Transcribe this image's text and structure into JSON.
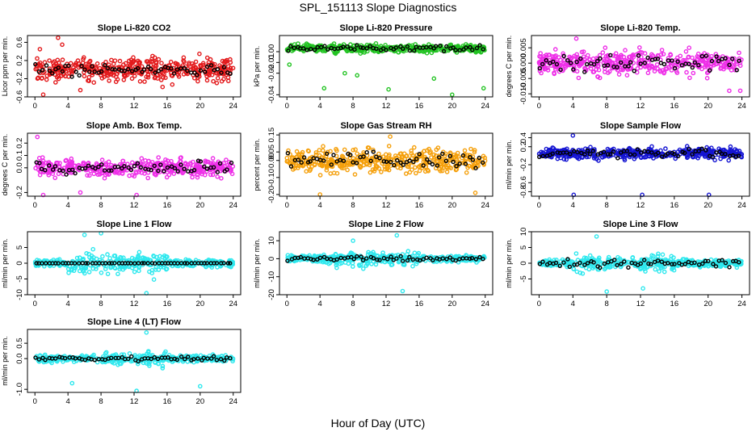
{
  "figure": {
    "title": "SPL_151113  Slope Diagnostics",
    "xlabel": "Hour of Day (UTC)"
  },
  "chart_data": [
    {
      "type": "scatter",
      "title": "Slope Li-820 CO2",
      "ylabel": "Licor ppm per min.",
      "xlim": [
        0,
        24
      ],
      "ylim": [
        -0.6,
        0.75
      ],
      "xticks": [
        "0",
        "4",
        "8",
        "12",
        "16",
        "20",
        "24"
      ],
      "yticks": [
        {
          "v": -0.6,
          "label": "-0.6"
        },
        {
          "v": -0.2,
          "label": "-0.2"
        },
        {
          "v": 0.2,
          "label": "0.2"
        },
        {
          "v": 0.6,
          "label": "0.6"
        }
      ],
      "color": "#e31a1c",
      "points_spread": 0.3,
      "black_spread": 0.15,
      "outliers": [
        [
          2.8,
          0.7
        ],
        [
          3.3,
          0.55
        ],
        [
          1.0,
          -0.55
        ],
        [
          5.5,
          -0.45
        ],
        [
          0.6,
          0.45
        ]
      ]
    },
    {
      "type": "scatter",
      "title": "Slope Li-820 Pressure",
      "ylabel": "kPa per min.",
      "xlim": [
        0,
        24
      ],
      "ylim": [
        -0.042,
        0.015
      ],
      "xticks": [
        "0",
        "4",
        "8",
        "12",
        "16",
        "20",
        "24"
      ],
      "yticks": [
        {
          "v": -0.04,
          "label": "-0.04"
        },
        {
          "v": -0.02,
          "label": "-0.02"
        },
        {
          "v": -0.01,
          "label": "-0.01"
        },
        {
          "v": 0.0,
          "label": "0.00"
        }
      ],
      "color": "#22c322",
      "points_spread": 0.004,
      "black_spread": 0.004,
      "center": 0.003,
      "outliers": [
        [
          4.5,
          -0.034
        ],
        [
          7.0,
          -0.02
        ],
        [
          8.5,
          -0.022
        ],
        [
          12.3,
          -0.035
        ],
        [
          17.8,
          -0.025
        ],
        [
          20.0,
          -0.04
        ],
        [
          23.8,
          -0.034
        ],
        [
          0.3,
          -0.012
        ]
      ]
    },
    {
      "type": "scatter",
      "title": "Slope Li-820 Temp.",
      "ylabel": "degrees C per min.",
      "xlim": [
        0,
        24
      ],
      "ylim": [
        -0.011,
        0.009
      ],
      "xticks": [
        "0",
        "4",
        "8",
        "12",
        "16",
        "20",
        "24"
      ],
      "yticks": [
        {
          "v": -0.01,
          "label": "-0.010"
        },
        {
          "v": -0.005,
          "label": "-0.005"
        },
        {
          "v": 0.0,
          "label": "0.000"
        },
        {
          "v": 0.005,
          "label": "0.005"
        }
      ],
      "color": "#ee2ee8",
      "points_spread": 0.0045,
      "black_spread": 0.003,
      "outliers": [
        [
          22.5,
          -0.009
        ],
        [
          23.8,
          -0.009
        ],
        [
          4.4,
          0.008
        ]
      ]
    },
    {
      "type": "scatter",
      "title": "Slope Amb. Box Temp.",
      "ylabel": "degrees C per min.",
      "xlim": [
        0,
        24
      ],
      "ylim": [
        -0.23,
        0.28
      ],
      "xticks": [
        "0",
        "4",
        "8",
        "12",
        "16",
        "20",
        "24"
      ],
      "yticks": [
        {
          "v": -0.2,
          "label": "-0.2"
        },
        {
          "v": 0.0,
          "label": "0.0"
        },
        {
          "v": 0.1,
          "label": "0.1"
        },
        {
          "v": 0.2,
          "label": "0.2"
        }
      ],
      "color": "#ee2ee8",
      "points_spread": 0.08,
      "black_spread": 0.06,
      "outliers": [
        [
          0.3,
          0.25
        ],
        [
          1.0,
          -0.22
        ],
        [
          12.3,
          -0.22
        ],
        [
          5.5,
          -0.2
        ]
      ]
    },
    {
      "type": "scatter",
      "title": "Slope Gas Stream RH",
      "ylabel": "percent per min.",
      "xlim": [
        0,
        24
      ],
      "ylim": [
        -0.21,
        0.16
      ],
      "xticks": [
        "0",
        "4",
        "8",
        "12",
        "16",
        "20",
        "24"
      ],
      "yticks": [
        {
          "v": -0.2,
          "label": "-0.20"
        },
        {
          "v": -0.1,
          "label": "-0.10"
        },
        {
          "v": 0.0,
          "label": "0.00"
        },
        {
          "v": 0.05,
          "label": "0.05"
        },
        {
          "v": 0.15,
          "label": "0.15"
        }
      ],
      "color": "#f5a00c",
      "points_spread": 0.075,
      "black_spread": 0.06,
      "outliers": [
        [
          4.0,
          -0.2
        ],
        [
          12.5,
          0.14
        ],
        [
          22.8,
          -0.19
        ]
      ]
    },
    {
      "type": "scatter",
      "title": "Slope Sample Flow",
      "ylabel": "ml/min per min.",
      "xlim": [
        0,
        24
      ],
      "ylim": [
        -0.9,
        0.5
      ],
      "xticks": [
        "0",
        "4",
        "8",
        "12",
        "16",
        "20",
        "24"
      ],
      "yticks": [
        {
          "v": -0.8,
          "label": "-0.8"
        },
        {
          "v": -0.6,
          "label": "-0.6"
        },
        {
          "v": -0.2,
          "label": "-0.2"
        },
        {
          "v": 0.2,
          "label": "0.2"
        },
        {
          "v": 0.4,
          "label": "0.4"
        }
      ],
      "color": "#1414d2",
      "points_spread": 0.14,
      "black_spread": 0.12,
      "center": 0.05,
      "outliers": [
        [
          4.1,
          -0.87
        ],
        [
          12.2,
          -0.87
        ],
        [
          20.1,
          -0.87
        ],
        [
          4.0,
          0.45
        ]
      ]
    },
    {
      "type": "scatter",
      "title": "Slope Line 1 Flow",
      "ylabel": "ml/min per min.",
      "xlim": [
        0,
        24
      ],
      "ylim": [
        -10,
        10
      ],
      "xticks": [
        "0",
        "4",
        "8",
        "12",
        "16",
        "20",
        "24"
      ],
      "yticks": [
        {
          "v": -10,
          "label": "-10"
        },
        {
          "v": -5,
          "label": "-5"
        },
        {
          "v": 0,
          "label": "0"
        },
        {
          "v": 5,
          "label": "5"
        }
      ],
      "color": "#2ee8ee",
      "points_spread": 1.2,
      "black_spread": 0.05,
      "wide": [
        [
          4,
          16,
          5
        ]
      ],
      "outliers": [
        [
          13.5,
          -9.5
        ],
        [
          8.0,
          9.5
        ],
        [
          6.0,
          9.0
        ]
      ]
    },
    {
      "type": "scatter",
      "title": "Slope Line 2 Flow",
      "ylabel": "ml/min per min.",
      "xlim": [
        0,
        24
      ],
      "ylim": [
        -20,
        15
      ],
      "xticks": [
        "0",
        "4",
        "8",
        "12",
        "16",
        "20",
        "24"
      ],
      "yticks": [
        {
          "v": -20,
          "label": "-20"
        },
        {
          "v": -10,
          "label": "-10"
        },
        {
          "v": 0,
          "label": "0"
        },
        {
          "v": 10,
          "label": "10"
        }
      ],
      "color": "#2ee8ee",
      "points_spread": 2.0,
      "black_spread": 1.5,
      "wide": [
        [
          4,
          16,
          6
        ]
      ],
      "outliers": [
        [
          13.3,
          13
        ],
        [
          14.0,
          -18
        ],
        [
          8.0,
          10
        ]
      ]
    },
    {
      "type": "scatter",
      "title": "Slope Line 3 Flow",
      "ylabel": "ml/min per min.",
      "xlim": [
        0,
        24
      ],
      "ylim": [
        -10,
        10
      ],
      "xticks": [
        "0",
        "4",
        "8",
        "12",
        "16",
        "20",
        "24"
      ],
      "yticks": [
        {
          "v": -5,
          "label": "-5"
        },
        {
          "v": 0,
          "label": "0"
        },
        {
          "v": 5,
          "label": "5"
        },
        {
          "v": 10,
          "label": "10"
        }
      ],
      "color": "#2ee8ee",
      "points_spread": 1.3,
      "black_spread": 1.5,
      "wide": [
        [
          4,
          16,
          4
        ]
      ],
      "outliers": [
        [
          6.8,
          8.5
        ],
        [
          12.3,
          -8
        ],
        [
          8.0,
          -9
        ]
      ]
    },
    {
      "type": "scatter",
      "title": "Slope Line 4 (LT) Flow",
      "ylabel": "ml/min per min.",
      "xlim": [
        0,
        24
      ],
      "ylim": [
        -1.1,
        0.95
      ],
      "xticks": [
        "0",
        "4",
        "8",
        "12",
        "16",
        "20",
        "24"
      ],
      "yticks": [
        {
          "v": -1.0,
          "label": "-1.0"
        },
        {
          "v": 0.0,
          "label": "0.0"
        },
        {
          "v": 0.5,
          "label": "0.5"
        }
      ],
      "color": "#2ee8ee",
      "points_spread": 0.12,
      "black_spread": 0.1,
      "wide": [
        [
          8,
          16,
          0.3
        ]
      ],
      "outliers": [
        [
          13.5,
          0.85
        ],
        [
          12.3,
          -1.05
        ],
        [
          20.0,
          -0.9
        ],
        [
          4.5,
          -0.8
        ]
      ]
    }
  ]
}
